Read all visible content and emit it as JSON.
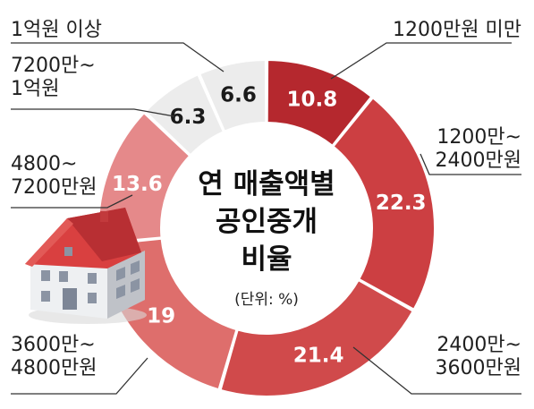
{
  "chart_data": {
    "type": "pie",
    "title_lines": [
      "연 매출액별",
      "공인중개",
      "비율"
    ],
    "unit": "(단위: %)",
    "categories": [
      [
        "1200만원 미만"
      ],
      [
        "1200만~",
        "2400만원"
      ],
      [
        "2400만~",
        "3600만원"
      ],
      [
        "3600만~",
        "4800만원"
      ],
      [
        "4800~",
        "7200만원"
      ],
      [
        "7200만~",
        "1억원"
      ],
      [
        "1억원 이상"
      ]
    ],
    "values": [
      10.8,
      22.3,
      21.4,
      19,
      13.6,
      6.3,
      6.6
    ],
    "value_labels": [
      "10.8",
      "22.3",
      "21.4",
      "19",
      "13.6",
      "6.3",
      "6.6"
    ],
    "colors": [
      "#b5282e",
      "#cc3f42",
      "#d04a4b",
      "#de6e6c",
      "#e5898a",
      "#ececec",
      "#ececec"
    ],
    "label_colors": [
      "#ffffff",
      "#ffffff",
      "#ffffff",
      "#ffffff",
      "#ffffff",
      "#1a1a1a",
      "#1a1a1a"
    ]
  }
}
